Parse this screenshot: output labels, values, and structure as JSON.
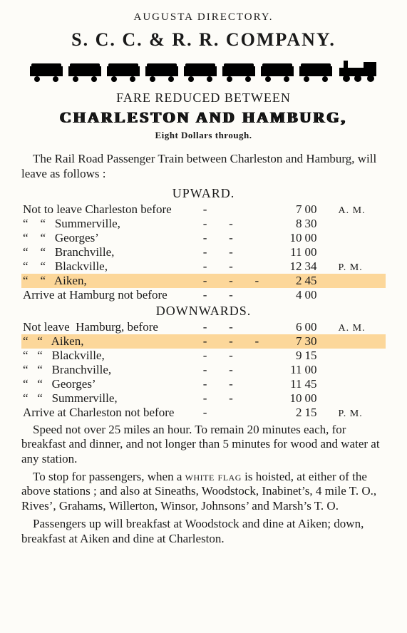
{
  "header_small": "AUGUSTA DIRECTORY.",
  "company": "S. C. C. & R. R. COMPANY.",
  "fare_line": "FARE REDUCED BETWEEN",
  "route_line": "CHARLESTON AND HAMBURG,",
  "price_line": "Eight Dollars through.",
  "intro": "The Rail Road Passenger Train between Charleston and Hamburg, will leave as follows :",
  "upward": {
    "title": "UPWARD.",
    "rows": [
      {
        "label": "Not to leave Charleston before",
        "dash_count": 1,
        "hr": "7",
        "min": "00",
        "ampm": "A. M.",
        "highlight": false
      },
      {
        "label": "“    “   Summerville,",
        "dash_count": 2,
        "hr": "8",
        "min": "30",
        "ampm": "",
        "highlight": false
      },
      {
        "label": "“    “   Georges’",
        "dash_count": 2,
        "hr": "10",
        "min": "00",
        "ampm": "",
        "highlight": false
      },
      {
        "label": "“    “   Branchville,",
        "dash_count": 2,
        "hr": "11",
        "min": "00",
        "ampm": "",
        "highlight": false
      },
      {
        "label": "“    “   Blackville,",
        "dash_count": 2,
        "hr": "12",
        "min": "34",
        "ampm": "P. M.",
        "highlight": false
      },
      {
        "label": "“    “   Aiken,",
        "dash_count": 3,
        "hr": "2",
        "min": "45",
        "ampm": "",
        "highlight": true
      },
      {
        "label": "Arrive at Hamburg not before",
        "dash_count": 2,
        "hr": "4",
        "min": "00",
        "ampm": "",
        "highlight": false
      }
    ]
  },
  "downwards": {
    "title": "DOWNWARDS.",
    "rows": [
      {
        "label": "Not leave  Hamburg, before",
        "dash_count": 2,
        "hr": "6",
        "min": "00",
        "ampm": "A. M.",
        "highlight": false
      },
      {
        "label": "“   “   Aiken,",
        "dash_count": 3,
        "hr": "7",
        "min": "30",
        "ampm": "",
        "highlight": true
      },
      {
        "label": "“   “   Blackville,",
        "dash_count": 2,
        "hr": "9",
        "min": "15",
        "ampm": "",
        "highlight": false
      },
      {
        "label": "“   “   Branchville,",
        "dash_count": 2,
        "hr": "11",
        "min": "00",
        "ampm": "",
        "highlight": false
      },
      {
        "label": "“   “   Georges’",
        "dash_count": 2,
        "hr": "11",
        "min": "45",
        "ampm": "",
        "highlight": false
      },
      {
        "label": "“   “   Summerville,",
        "dash_count": 2,
        "hr": "10",
        "min": "00",
        "ampm": "",
        "highlight": false
      },
      {
        "label": "Arrive at Charleston not before",
        "dash_count": 1,
        "hr": "2",
        "min": "15",
        "ampm": "P. M.",
        "highlight": false
      }
    ]
  },
  "paragraphs": [
    "Speed not over 25 miles an hour.   To remain 20 minutes each, for breakfast and dinner, and not longer than 5 minutes for wood and water at any station.",
    "To stop for passengers, when a WHITE FLAG is hoisted, at either of the above stations ; and also at Sineaths, Woodstock, Inabinet’s, 4 mile T. O., Rives’, Grahams, Willerton, Winsor, Johnsons’ and Marsh’s T. O.",
    "Passengers up will breakfast at Woodstock and dine at Aiken; down, breakfast at Aiken and dine at Charleston."
  ],
  "colors": {
    "highlight": "#fcd79a",
    "text": "#1a1a1a",
    "background": "#fdfcf8"
  }
}
